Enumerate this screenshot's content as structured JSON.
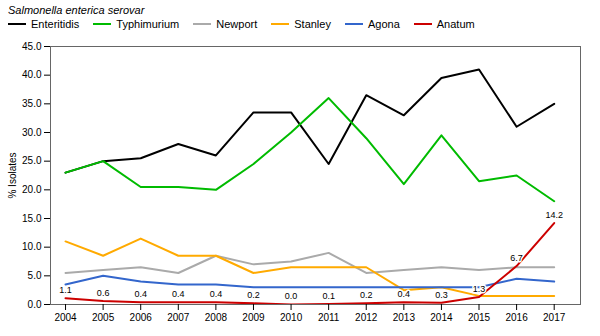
{
  "chart_data": {
    "type": "line",
    "x": [
      2004,
      2005,
      2006,
      2007,
      2008,
      2009,
      2010,
      2011,
      2012,
      2013,
      2014,
      2015,
      2016,
      2017
    ],
    "series": [
      {
        "name": "Enteritidis",
        "color": "#000000",
        "values": [
          23.0,
          25.0,
          25.5,
          28.0,
          26.0,
          33.5,
          33.5,
          24.5,
          36.5,
          33.0,
          39.5,
          41.0,
          31.0,
          35.0
        ]
      },
      {
        "name": "Typhimurium",
        "color": "#00bb00",
        "values": [
          23.0,
          25.0,
          20.5,
          20.5,
          20.0,
          24.5,
          30.0,
          36.0,
          29.0,
          21.0,
          29.5,
          21.5,
          22.5,
          18.0
        ]
      },
      {
        "name": "Newport",
        "color": "#aaaaaa",
        "values": [
          5.5,
          6.0,
          6.5,
          5.5,
          8.5,
          7.0,
          7.5,
          9.0,
          5.5,
          6.0,
          6.5,
          6.0,
          6.5,
          6.5
        ]
      },
      {
        "name": "Stanley",
        "color": "#ffaa00",
        "values": [
          11.0,
          8.5,
          11.5,
          8.5,
          8.5,
          5.5,
          6.5,
          6.5,
          6.5,
          2.5,
          3.0,
          1.5,
          1.5,
          1.5
        ]
      },
      {
        "name": "Agona",
        "color": "#3366cc",
        "values": [
          3.5,
          5.0,
          4.0,
          3.5,
          3.5,
          3.0,
          3.0,
          3.0,
          3.0,
          3.0,
          3.0,
          3.0,
          4.5,
          4.0
        ]
      },
      {
        "name": "Anatum",
        "color": "#cc0000",
        "values": [
          1.1,
          0.6,
          0.4,
          0.4,
          0.4,
          0.2,
          0.0,
          0.1,
          0.2,
          0.4,
          0.3,
          1.3,
          6.7,
          14.2
        ],
        "data_labels": true,
        "value_labels": [
          "1.1",
          "0.6",
          "0.4",
          "0.4",
          "0.4",
          "0.2",
          "0.0",
          "0.1",
          "0.2",
          "0.4",
          "0.3",
          "1.3",
          "6.7",
          "14.2"
        ]
      }
    ],
    "ylabel": "% Isolates",
    "legend_title": "Salmonella enterica serovar",
    "legend": "upper left",
    "grid": false,
    "xlim": [
      2003.6,
      2017.7
    ],
    "xticks": [
      2004,
      2005,
      2006,
      2007,
      2008,
      2009,
      2010,
      2011,
      2012,
      2013,
      2014,
      2015,
      2016,
      2017
    ],
    "ylim": [
      0,
      45
    ],
    "yticks": [
      {
        "value": 0,
        "label": "0.0"
      },
      {
        "value": 5,
        "label": "5.0"
      },
      {
        "value": 10,
        "label": "10.0"
      },
      {
        "value": 15,
        "label": "15.0"
      },
      {
        "value": 20,
        "label": "20.0"
      },
      {
        "value": 25,
        "label": "25.0"
      },
      {
        "value": 30,
        "label": "30.0"
      },
      {
        "value": 35,
        "label": "35.0"
      },
      {
        "value": 40,
        "label": "40.0"
      },
      {
        "value": 45,
        "label": "45.0"
      }
    ]
  }
}
